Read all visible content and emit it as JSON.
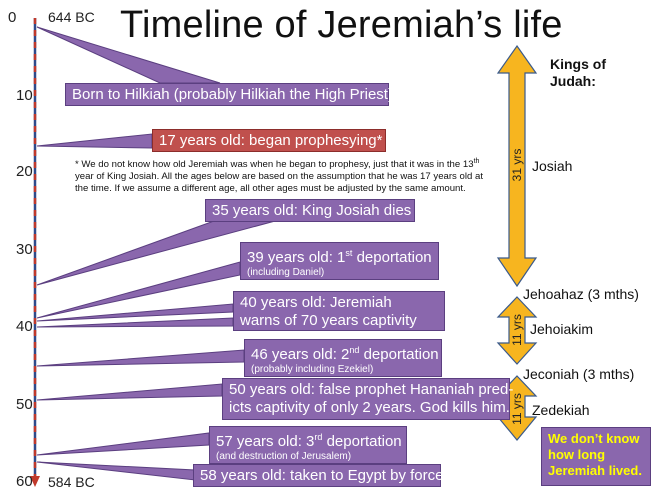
{
  "title": "Timeline of Jeremiah’s life",
  "axis": {
    "ticks": [
      "0",
      "10",
      "20",
      "30",
      "40",
      "50",
      "60"
    ],
    "start_label": "644 BC",
    "end_label": "584 BC"
  },
  "events": [
    {
      "age": 0,
      "text": "Born to Hilkiah (probably Hilkiah the High Priest)",
      "sub": "",
      "sup": "",
      "tail": ""
    },
    {
      "age": 17,
      "text": "17 years old: began prophesying*",
      "sub": "",
      "sup": "",
      "tail": ""
    },
    {
      "age": 35,
      "text": "35 years old: King Josiah dies",
      "sub": "",
      "sup": "",
      "tail": ""
    },
    {
      "age": 39,
      "text": "39 years old: 1",
      "sup": "st",
      "tail": " deportation",
      "sub": "(including Daniel)"
    },
    {
      "age": 40,
      "text": "40 years old: Jeremiah",
      "sub": "",
      "sup": "",
      "tail": "",
      "line2": "warns of 70 years captivity"
    },
    {
      "age": 46,
      "text": "46 years old: 2",
      "sup": "nd",
      "tail": " deportation",
      "sub": "(probably including Ezekiel)"
    },
    {
      "age": 50,
      "text": "50 years old: false prophet Hananiah pred-",
      "sub": "",
      "sup": "",
      "tail": "",
      "line2": "icts captivity of only 2 years.  God kills him."
    },
    {
      "age": 57,
      "text": "57 years old: 3",
      "sup": "rd",
      "tail": " deportation",
      "sub": "(and destruction of Jerusalem)"
    },
    {
      "age": 58,
      "text": "58 years old: taken to Egypt by force",
      "sub": "",
      "sup": "",
      "tail": ""
    }
  ],
  "footnote": {
    "line1_a": "* We do not know how old Jeremiah was when he began to prophesy, just that it was in the 13",
    "line1_sup": "th",
    "line2": "year of King Josiah.  All the ages below are based on the assumption that he was 17 years old at",
    "line3": "the time.  If we assume a different age, all other ages must be adjusted by the same amount."
  },
  "kings": {
    "title_line1": "Kings of",
    "title_line2": "Judah:",
    "reigns": [
      {
        "name": "Josiah",
        "duration": "31 yrs"
      },
      {
        "name": "Jehoahaz (3 mths)",
        "duration": ""
      },
      {
        "name": "Jehoiakim",
        "duration": "11 yrs"
      },
      {
        "name": "Jeconiah (3 mths)",
        "duration": ""
      },
      {
        "name": "Zedekiah",
        "duration": "11 yrs"
      }
    ]
  },
  "unknown_note": "We don’t know how long Jeremiah lived.",
  "colors": {
    "event_box": "#8a67ad",
    "event_border": "#5b3f80",
    "highlight_box": "#c0504d",
    "arrow_fill": "#f7b51f",
    "arrow_stroke": "#3a5a8c",
    "axis_blue": "#2f4a8a",
    "axis_red": "#c0392b",
    "note_text": "#ffff00"
  }
}
